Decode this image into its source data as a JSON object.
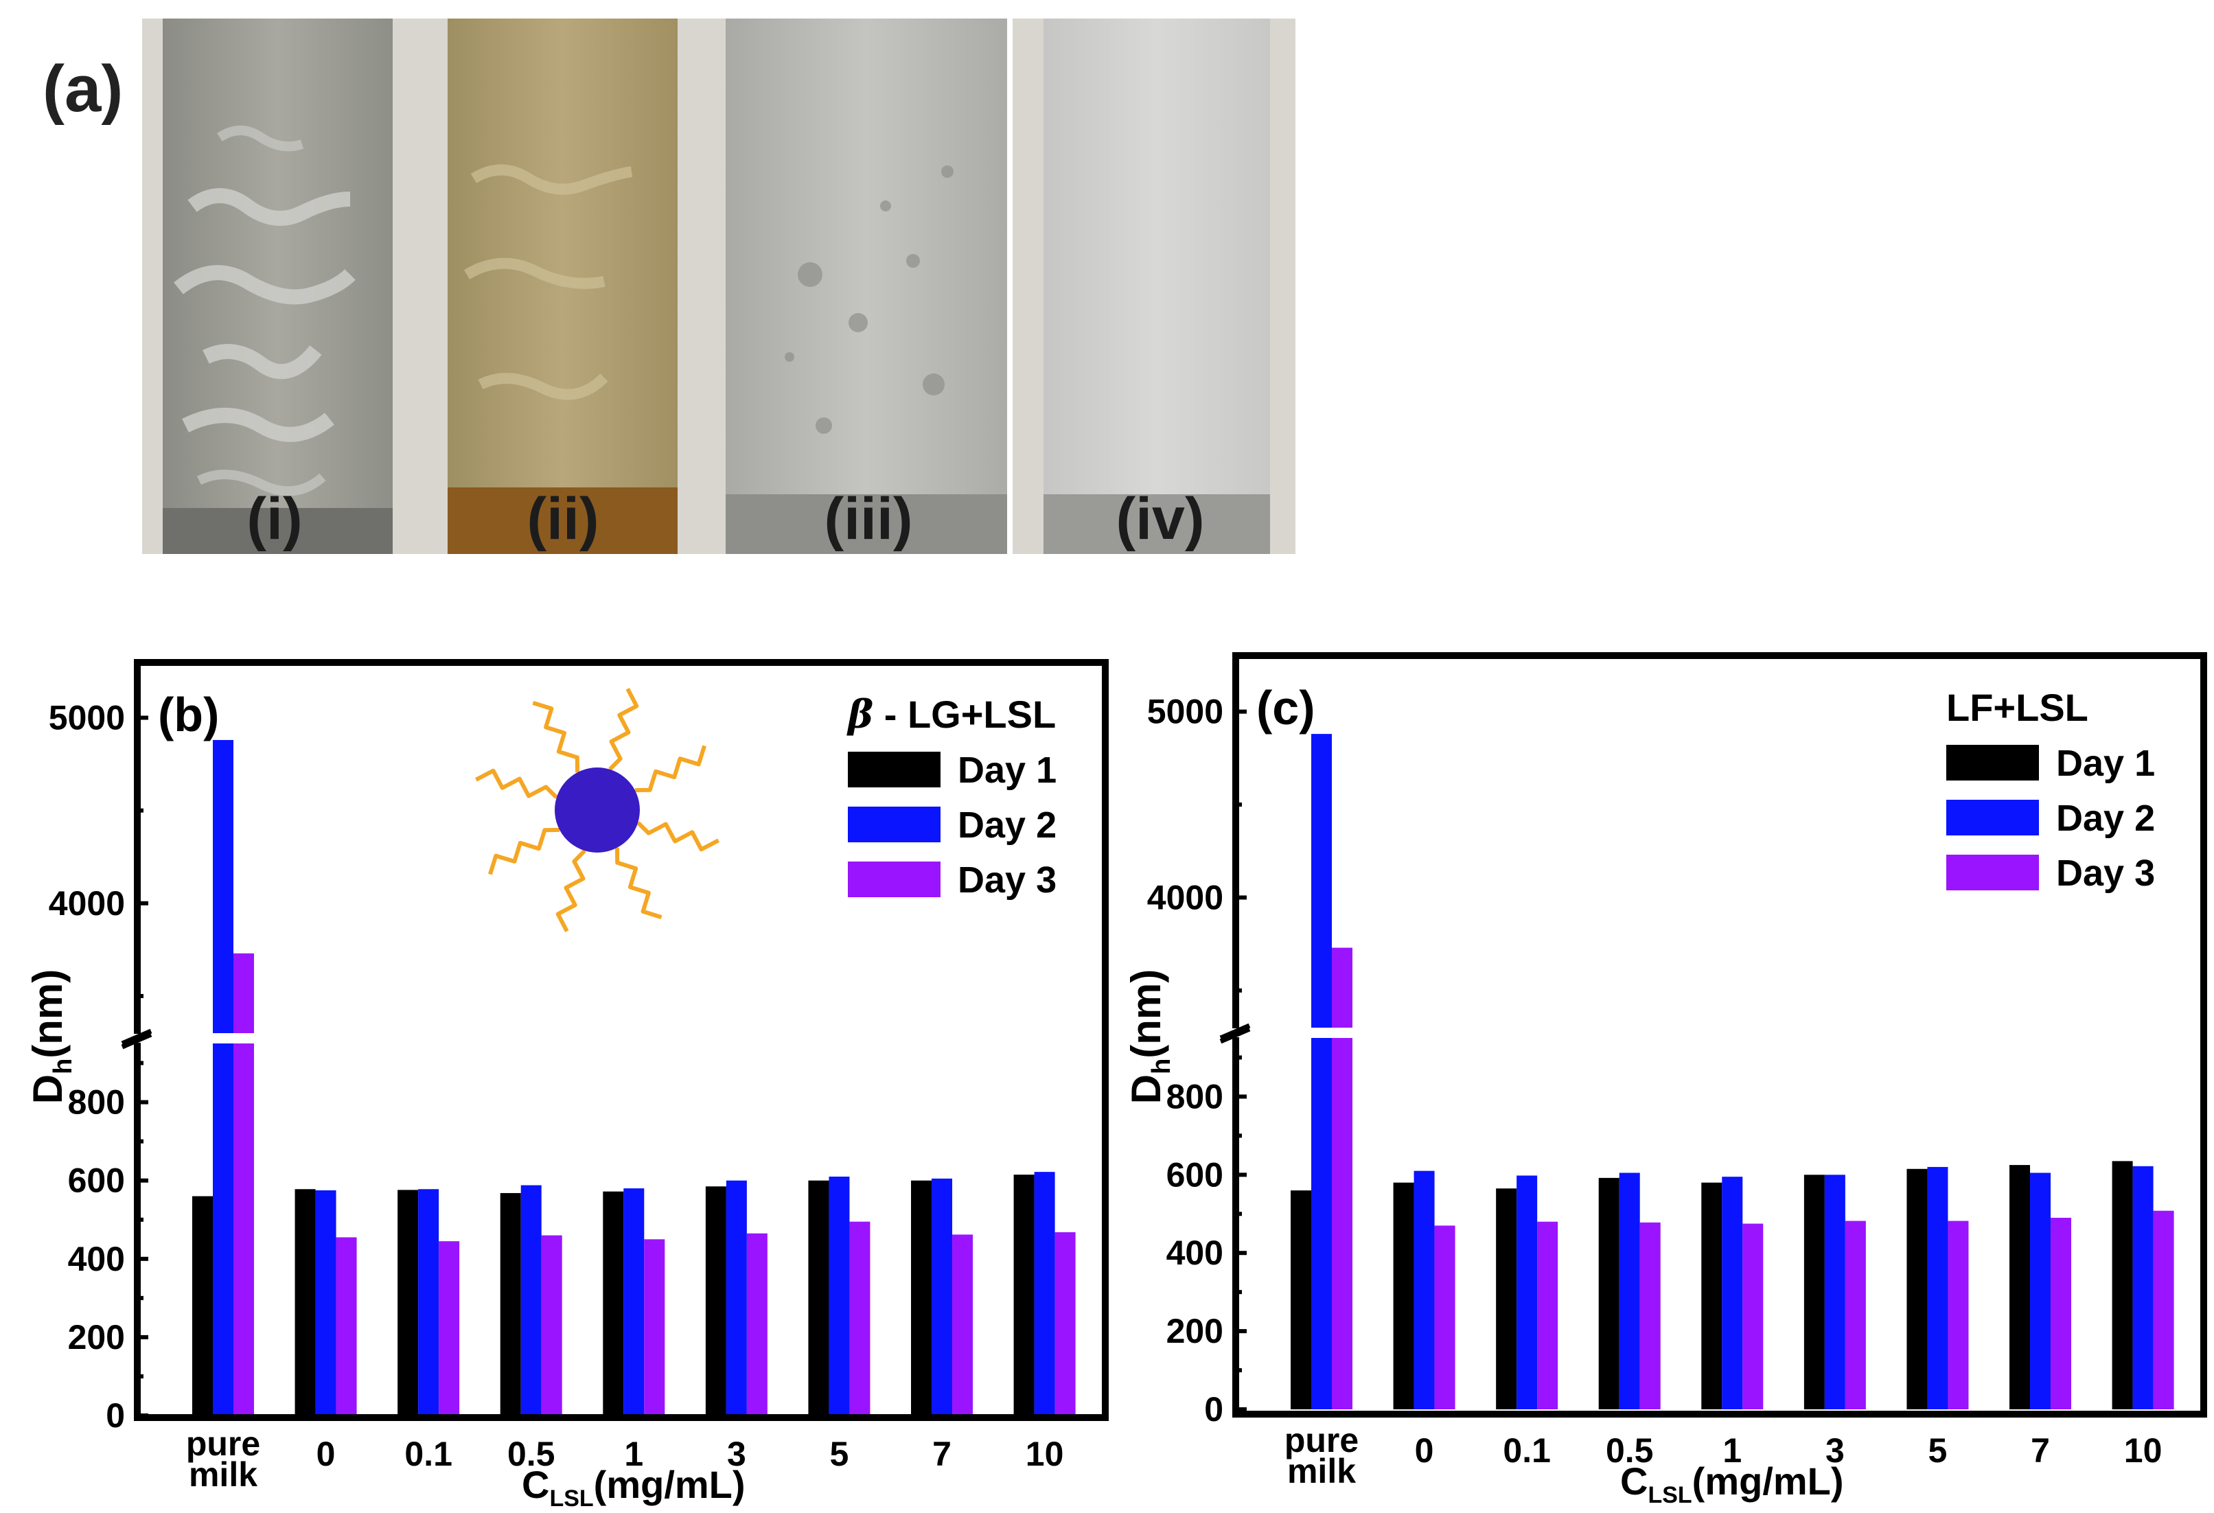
{
  "panel_a": {
    "label": "(a)",
    "photo_labels": [
      "(i)",
      "(ii)",
      "(iii)",
      "(iv)"
    ]
  },
  "colors": {
    "day1": "#000000",
    "day2": "#0a14ff",
    "day3": "#9b14ff",
    "micelle_core": "#3a1cc4",
    "micelle_tails": "#f5a623"
  },
  "chart_data": [
    {
      "type": "bar",
      "panel_label": "(b)",
      "legend_title": "β - LG+LSL",
      "legend_title_parts": [
        "β",
        " - LG+LSL"
      ],
      "legend_placement": "top-right",
      "xlabel_main": "C",
      "xlabel_sub": "LSL",
      "xlabel_rest": "(mg/mL)",
      "ylabel_main": "D",
      "ylabel_sub": "h",
      "ylabel_rest": "(nm)",
      "broken_axis": true,
      "ylim_lower": [
        0,
        950
      ],
      "ylim_upper": [
        3300,
        5150
      ],
      "yticks_lower": [
        0,
        200,
        400,
        600,
        800
      ],
      "yticks_upper": [
        4000,
        5000
      ],
      "categories": [
        [
          "pure",
          "milk"
        ],
        [
          "0"
        ],
        [
          "0.1"
        ],
        [
          "0.5"
        ],
        [
          "1"
        ],
        [
          "3"
        ],
        [
          "5"
        ],
        [
          "7"
        ],
        [
          "10"
        ]
      ],
      "series": [
        {
          "name": "Day 1",
          "values": [
            560,
            578,
            576,
            568,
            572,
            585,
            600,
            600,
            615
          ]
        },
        {
          "name": "Day 2",
          "values": [
            4880,
            575,
            578,
            588,
            580,
            600,
            610,
            605,
            622
          ]
        },
        {
          "name": "Day 3",
          "values": [
            3730,
            455,
            445,
            460,
            450,
            465,
            495,
            462,
            468
          ]
        }
      ]
    },
    {
      "type": "bar",
      "panel_label": "(c)",
      "legend_title": "LF+LSL",
      "legend_title_parts": [
        "",
        "LF+LSL"
      ],
      "legend_placement": "top-right",
      "xlabel_main": "C",
      "xlabel_sub": "LSL",
      "xlabel_rest": "(mg/mL)",
      "ylabel_main": "D",
      "ylabel_sub": "h",
      "ylabel_rest": "(nm)",
      "broken_axis": true,
      "ylim_lower": [
        0,
        950
      ],
      "ylim_upper": [
        3300,
        5150
      ],
      "yticks_lower": [
        0,
        200,
        400,
        600,
        800
      ],
      "yticks_upper": [
        4000,
        5000
      ],
      "categories": [
        [
          "pure",
          "milk"
        ],
        [
          "0"
        ],
        [
          "0.1"
        ],
        [
          "0.5"
        ],
        [
          "1"
        ],
        [
          "3"
        ],
        [
          "5"
        ],
        [
          "7"
        ],
        [
          "10"
        ]
      ],
      "series": [
        {
          "name": "Day 1",
          "values": [
            560,
            580,
            565,
            592,
            580,
            600,
            615,
            625,
            635
          ]
        },
        {
          "name": "Day 2",
          "values": [
            4880,
            610,
            598,
            605,
            595,
            600,
            620,
            605,
            622
          ]
        },
        {
          "name": "Day 3",
          "values": [
            3730,
            470,
            480,
            478,
            475,
            482,
            482,
            490,
            508
          ]
        }
      ]
    }
  ]
}
